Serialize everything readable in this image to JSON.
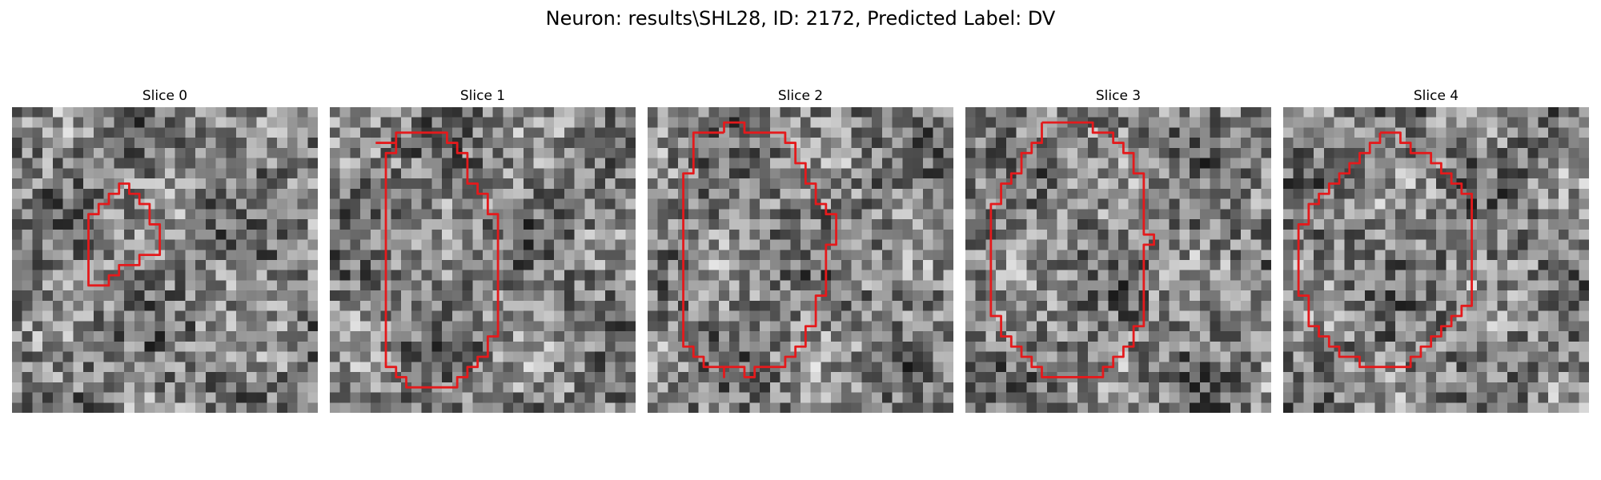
{
  "figure": {
    "title": "Neuron: results\\SHL28, ID: 2172, Predicted Label: DV",
    "outline_color": "#e41a1c"
  },
  "panels": [
    {
      "title": "Slice 0",
      "roi": [
        [
          13.5,
          14.5
        ],
        [
          12.5,
          14.5
        ],
        [
          12.5,
          15.5
        ],
        [
          10.5,
          15.5
        ],
        [
          10.5,
          16.5
        ],
        [
          9.5,
          16.5
        ],
        [
          9.5,
          17.5
        ],
        [
          8.5,
          17.5
        ],
        [
          7.5,
          17.5
        ],
        [
          7.5,
          16.5
        ],
        [
          7.5,
          15.5
        ],
        [
          7.5,
          14.5
        ],
        [
          7.5,
          13.5
        ],
        [
          7.5,
          12.5
        ],
        [
          7.5,
          11.5
        ],
        [
          7.5,
          10.5
        ],
        [
          8.5,
          10.5
        ],
        [
          8.5,
          9.5
        ],
        [
          9.5,
          9.5
        ],
        [
          9.5,
          8.5
        ],
        [
          10.5,
          8.5
        ],
        [
          10.5,
          7.5
        ],
        [
          11.5,
          7.5
        ],
        [
          11.5,
          8.5
        ],
        [
          12.5,
          8.5
        ],
        [
          12.5,
          9.5
        ],
        [
          13.5,
          9.5
        ],
        [
          13.5,
          10.5
        ],
        [
          13.5,
          11.5
        ],
        [
          14.5,
          11.5
        ],
        [
          14.5,
          12.5
        ],
        [
          14.5,
          13.5
        ],
        [
          14.5,
          14.5
        ],
        [
          13.5,
          14.5
        ]
      ]
    },
    {
      "title": "Slice 1",
      "roi": [
        [
          4.5,
          3.5
        ],
        [
          6.5,
          3.5
        ],
        [
          6.5,
          2.5
        ],
        [
          9.5,
          2.5
        ],
        [
          11.5,
          2.5
        ],
        [
          11.5,
          3.5
        ],
        [
          12.5,
          3.5
        ],
        [
          12.5,
          4.5
        ],
        [
          13.5,
          4.5
        ],
        [
          13.5,
          5.5
        ],
        [
          13.5,
          6.5
        ],
        [
          13.5,
          7.5
        ],
        [
          14.5,
          7.5
        ],
        [
          14.5,
          8.5
        ],
        [
          15.5,
          8.5
        ],
        [
          15.5,
          9.5
        ],
        [
          15.5,
          10.5
        ],
        [
          16.5,
          10.5
        ],
        [
          16.5,
          11.5
        ],
        [
          16.5,
          12.5
        ],
        [
          16.5,
          13.5
        ],
        [
          16.5,
          14.5
        ],
        [
          16.5,
          15.5
        ],
        [
          16.5,
          16.5
        ],
        [
          16.5,
          17.5
        ],
        [
          16.5,
          18.5
        ],
        [
          16.5,
          19.5
        ],
        [
          16.5,
          20.5
        ],
        [
          16.5,
          21.5
        ],
        [
          16.5,
          22.5
        ],
        [
          15.5,
          22.5
        ],
        [
          15.5,
          23.5
        ],
        [
          15.5,
          24.5
        ],
        [
          14.5,
          24.5
        ],
        [
          14.5,
          25.5
        ],
        [
          13.5,
          25.5
        ],
        [
          13.5,
          26.5
        ],
        [
          12.5,
          26.5
        ],
        [
          12.5,
          27.5
        ],
        [
          11.5,
          27.5
        ],
        [
          10.5,
          27.5
        ],
        [
          9.5,
          27.5
        ],
        [
          8.5,
          27.5
        ],
        [
          7.5,
          27.5
        ],
        [
          7.5,
          26.5
        ],
        [
          6.5,
          26.5
        ],
        [
          6.5,
          25.5
        ],
        [
          5.5,
          25.5
        ],
        [
          5.5,
          24.5
        ],
        [
          5.5,
          23.5
        ],
        [
          5.5,
          22.5
        ],
        [
          5.5,
          21.5
        ],
        [
          5.5,
          20.5
        ],
        [
          5.5,
          19.5
        ],
        [
          5.5,
          18.5
        ],
        [
          5.5,
          17.5
        ],
        [
          5.5,
          16.5
        ],
        [
          5.5,
          15.5
        ],
        [
          5.5,
          14.5
        ],
        [
          5.5,
          13.5
        ],
        [
          5.5,
          12.5
        ],
        [
          5.5,
          11.5
        ],
        [
          5.5,
          10.5
        ],
        [
          5.5,
          9.5
        ],
        [
          5.5,
          8.5
        ],
        [
          5.5,
          7.5
        ],
        [
          5.5,
          6.5
        ],
        [
          5.5,
          5.5
        ],
        [
          5.5,
          4.5
        ],
        [
          6.5,
          4.5
        ],
        [
          6.5,
          3.5
        ],
        [
          4.5,
          3.5
        ]
      ]
    },
    {
      "title": "Slice 2",
      "roi": [
        [
          7.5,
          2.5
        ],
        [
          7.5,
          1.5
        ],
        [
          8.5,
          1.5
        ],
        [
          9.5,
          1.5
        ],
        [
          9.5,
          2.5
        ],
        [
          12.5,
          2.5
        ],
        [
          13.5,
          2.5
        ],
        [
          13.5,
          3.5
        ],
        [
          14.5,
          3.5
        ],
        [
          14.5,
          4.5
        ],
        [
          14.5,
          5.5
        ],
        [
          15.5,
          5.5
        ],
        [
          15.5,
          6.5
        ],
        [
          15.5,
          7.5
        ],
        [
          16.5,
          7.5
        ],
        [
          16.5,
          8.5
        ],
        [
          16.5,
          9.5
        ],
        [
          17.5,
          9.5
        ],
        [
          17.5,
          10.5
        ],
        [
          18.5,
          10.5
        ],
        [
          18.5,
          11.5
        ],
        [
          18.5,
          12.5
        ],
        [
          18.5,
          13.5
        ],
        [
          17.5,
          13.5
        ],
        [
          17.5,
          14.5
        ],
        [
          17.5,
          15.5
        ],
        [
          17.5,
          16.5
        ],
        [
          17.5,
          17.5
        ],
        [
          17.5,
          18.5
        ],
        [
          16.5,
          18.5
        ],
        [
          16.5,
          19.5
        ],
        [
          16.5,
          20.5
        ],
        [
          16.5,
          21.5
        ],
        [
          15.5,
          21.5
        ],
        [
          15.5,
          22.5
        ],
        [
          15.5,
          23.5
        ],
        [
          14.5,
          23.5
        ],
        [
          14.5,
          24.5
        ],
        [
          13.5,
          24.5
        ],
        [
          13.5,
          25.5
        ],
        [
          12.5,
          25.5
        ],
        [
          11.5,
          25.5
        ],
        [
          10.5,
          25.5
        ],
        [
          10.5,
          26.5
        ],
        [
          9.5,
          26.5
        ],
        [
          9.5,
          25.5
        ],
        [
          8.5,
          25.5
        ],
        [
          7.5,
          25.5
        ],
        [
          7.5,
          26.5
        ],
        [
          7.5,
          25.5
        ],
        [
          6.5,
          25.5
        ],
        [
          5.5,
          25.5
        ],
        [
          5.5,
          24.5
        ],
        [
          4.5,
          24.5
        ],
        [
          4.5,
          23.5
        ],
        [
          3.5,
          23.5
        ],
        [
          3.5,
          22.5
        ],
        [
          3.5,
          21.5
        ],
        [
          3.5,
          20.5
        ],
        [
          3.5,
          19.5
        ],
        [
          3.5,
          18.5
        ],
        [
          3.5,
          17.5
        ],
        [
          3.5,
          16.5
        ],
        [
          3.5,
          15.5
        ],
        [
          3.5,
          14.5
        ],
        [
          3.5,
          13.5
        ],
        [
          3.5,
          12.5
        ],
        [
          3.5,
          11.5
        ],
        [
          3.5,
          10.5
        ],
        [
          3.5,
          9.5
        ],
        [
          3.5,
          8.5
        ],
        [
          3.5,
          7.5
        ],
        [
          3.5,
          6.5
        ],
        [
          4.5,
          6.5
        ],
        [
          4.5,
          5.5
        ],
        [
          4.5,
          4.5
        ],
        [
          4.5,
          3.5
        ],
        [
          4.5,
          2.5
        ],
        [
          5.5,
          2.5
        ],
        [
          6.5,
          2.5
        ],
        [
          7.5,
          2.5
        ]
      ]
    },
    {
      "title": "Slice 3",
      "roi": [
        [
          7.5,
          1.5
        ],
        [
          9.5,
          1.5
        ],
        [
          11.5,
          1.5
        ],
        [
          12.5,
          1.5
        ],
        [
          12.5,
          2.5
        ],
        [
          13.5,
          2.5
        ],
        [
          14.5,
          2.5
        ],
        [
          14.5,
          3.5
        ],
        [
          15.5,
          3.5
        ],
        [
          15.5,
          4.5
        ],
        [
          16.5,
          4.5
        ],
        [
          16.5,
          5.5
        ],
        [
          16.5,
          6.5
        ],
        [
          17.5,
          6.5
        ],
        [
          17.5,
          7.5
        ],
        [
          17.5,
          8.5
        ],
        [
          17.5,
          9.5
        ],
        [
          17.5,
          10.5
        ],
        [
          17.5,
          11.5
        ],
        [
          17.5,
          12.5
        ],
        [
          18.5,
          12.5
        ],
        [
          18.5,
          13.5
        ],
        [
          17.5,
          13.5
        ],
        [
          17.5,
          14.5
        ],
        [
          17.5,
          15.5
        ],
        [
          17.5,
          16.5
        ],
        [
          17.5,
          17.5
        ],
        [
          17.5,
          18.5
        ],
        [
          17.5,
          19.5
        ],
        [
          17.5,
          20.5
        ],
        [
          17.5,
          21.5
        ],
        [
          16.5,
          21.5
        ],
        [
          16.5,
          22.5
        ],
        [
          16.5,
          23.5
        ],
        [
          15.5,
          23.5
        ],
        [
          15.5,
          24.5
        ],
        [
          14.5,
          24.5
        ],
        [
          14.5,
          25.5
        ],
        [
          13.5,
          25.5
        ],
        [
          13.5,
          26.5
        ],
        [
          12.5,
          26.5
        ],
        [
          11.5,
          26.5
        ],
        [
          10.5,
          26.5
        ],
        [
          9.5,
          26.5
        ],
        [
          8.5,
          26.5
        ],
        [
          7.5,
          26.5
        ],
        [
          7.5,
          25.5
        ],
        [
          6.5,
          25.5
        ],
        [
          6.5,
          24.5
        ],
        [
          5.5,
          24.5
        ],
        [
          5.5,
          23.5
        ],
        [
          4.5,
          23.5
        ],
        [
          4.5,
          22.5
        ],
        [
          3.5,
          22.5
        ],
        [
          3.5,
          21.5
        ],
        [
          3.5,
          20.5
        ],
        [
          2.5,
          20.5
        ],
        [
          2.5,
          19.5
        ],
        [
          2.5,
          18.5
        ],
        [
          2.5,
          17.5
        ],
        [
          2.5,
          16.5
        ],
        [
          2.5,
          15.5
        ],
        [
          2.5,
          14.5
        ],
        [
          2.5,
          13.5
        ],
        [
          2.5,
          12.5
        ],
        [
          2.5,
          11.5
        ],
        [
          2.5,
          10.5
        ],
        [
          2.5,
          9.5
        ],
        [
          3.5,
          9.5
        ],
        [
          3.5,
          8.5
        ],
        [
          3.5,
          7.5
        ],
        [
          4.5,
          7.5
        ],
        [
          4.5,
          6.5
        ],
        [
          5.5,
          6.5
        ],
        [
          5.5,
          5.5
        ],
        [
          5.5,
          4.5
        ],
        [
          6.5,
          4.5
        ],
        [
          6.5,
          3.5
        ],
        [
          7.5,
          3.5
        ],
        [
          7.5,
          2.5
        ],
        [
          7.5,
          1.5
        ]
      ]
    },
    {
      "title": "Slice 4",
      "roi": [
        [
          9.5,
          2.5
        ],
        [
          11.5,
          2.5
        ],
        [
          11.5,
          3.5
        ],
        [
          12.5,
          3.5
        ],
        [
          12.5,
          4.5
        ],
        [
          13.5,
          4.5
        ],
        [
          14.5,
          4.5
        ],
        [
          14.5,
          5.5
        ],
        [
          15.5,
          5.5
        ],
        [
          15.5,
          6.5
        ],
        [
          16.5,
          6.5
        ],
        [
          16.5,
          7.5
        ],
        [
          17.5,
          7.5
        ],
        [
          17.5,
          8.5
        ],
        [
          18.5,
          8.5
        ],
        [
          18.5,
          9.5
        ],
        [
          18.5,
          10.5
        ],
        [
          18.5,
          11.5
        ],
        [
          18.5,
          12.5
        ],
        [
          18.5,
          13.5
        ],
        [
          18.5,
          14.5
        ],
        [
          18.5,
          15.5
        ],
        [
          18.5,
          16.5
        ],
        [
          18.5,
          17.5
        ],
        [
          18.5,
          18.5
        ],
        [
          18.5,
          19.5
        ],
        [
          17.5,
          19.5
        ],
        [
          17.5,
          20.5
        ],
        [
          16.5,
          20.5
        ],
        [
          16.5,
          21.5
        ],
        [
          15.5,
          21.5
        ],
        [
          15.5,
          22.5
        ],
        [
          14.5,
          22.5
        ],
        [
          14.5,
          23.5
        ],
        [
          13.5,
          23.5
        ],
        [
          13.5,
          24.5
        ],
        [
          12.5,
          24.5
        ],
        [
          12.5,
          25.5
        ],
        [
          11.5,
          25.5
        ],
        [
          10.5,
          25.5
        ],
        [
          9.5,
          25.5
        ],
        [
          8.5,
          25.5
        ],
        [
          7.5,
          25.5
        ],
        [
          7.5,
          24.5
        ],
        [
          6.5,
          24.5
        ],
        [
          5.5,
          24.5
        ],
        [
          5.5,
          23.5
        ],
        [
          4.5,
          23.5
        ],
        [
          4.5,
          22.5
        ],
        [
          3.5,
          22.5
        ],
        [
          3.5,
          21.5
        ],
        [
          2.5,
          21.5
        ],
        [
          2.5,
          20.5
        ],
        [
          2.5,
          19.5
        ],
        [
          2.5,
          18.5
        ],
        [
          1.5,
          18.5
        ],
        [
          1.5,
          17.5
        ],
        [
          1.5,
          16.5
        ],
        [
          1.5,
          15.5
        ],
        [
          1.5,
          14.5
        ],
        [
          1.5,
          13.5
        ],
        [
          1.5,
          12.5
        ],
        [
          1.5,
          11.5
        ],
        [
          2.5,
          11.5
        ],
        [
          2.5,
          10.5
        ],
        [
          2.5,
          9.5
        ],
        [
          3.5,
          9.5
        ],
        [
          3.5,
          8.5
        ],
        [
          4.5,
          8.5
        ],
        [
          4.5,
          7.5
        ],
        [
          5.5,
          7.5
        ],
        [
          5.5,
          6.5
        ],
        [
          6.5,
          6.5
        ],
        [
          6.5,
          5.5
        ],
        [
          7.5,
          5.5
        ],
        [
          7.5,
          4.5
        ],
        [
          8.5,
          4.5
        ],
        [
          8.5,
          3.5
        ],
        [
          9.5,
          3.5
        ],
        [
          9.5,
          2.5
        ]
      ]
    }
  ]
}
